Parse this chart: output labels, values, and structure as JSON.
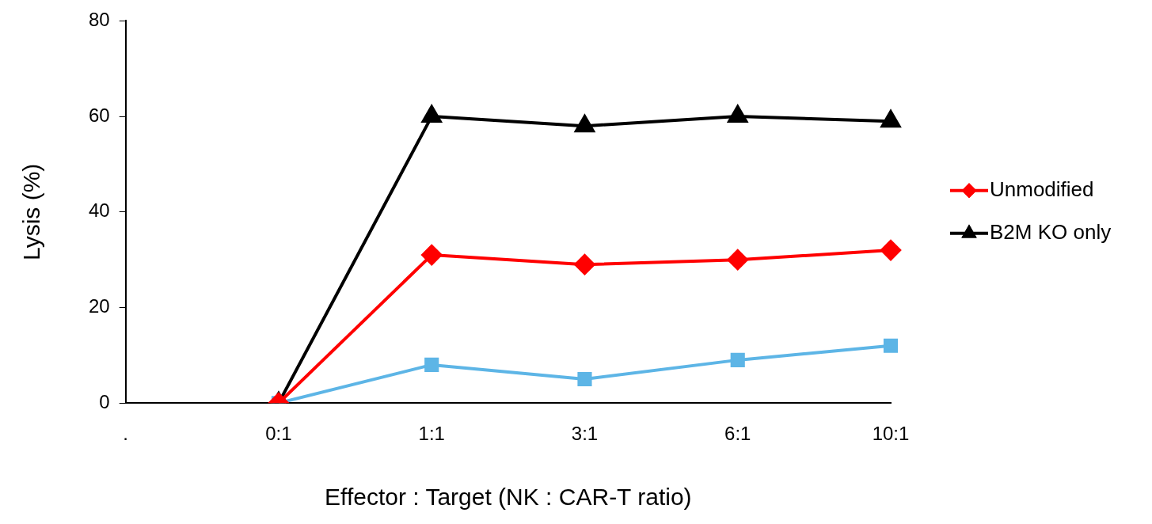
{
  "chart_data": {
    "type": "line",
    "xlabel": "Effector : Target (NK : CAR-T ratio)",
    "ylabel": "Lysis (%)",
    "categories": [
      ".",
      "0:1",
      "1:1",
      "3:1",
      "6:1",
      "10:1"
    ],
    "series": [
      {
        "name": "Unmodified",
        "color": "#ff0000",
        "marker": "diamond",
        "values": [
          null,
          0,
          31,
          29,
          30,
          32
        ]
      },
      {
        "name": "B2M KO only",
        "color": "#000000",
        "marker": "triangle",
        "values": [
          null,
          0,
          60,
          58,
          60,
          59
        ]
      },
      {
        "color": "#5db5e6",
        "marker": "square",
        "values": [
          null,
          0,
          8,
          5,
          9,
          12
        ]
      }
    ],
    "ylim": [
      0,
      80
    ],
    "yticks": [
      0,
      20,
      40,
      60,
      80
    ],
    "grid": false,
    "legend": "right",
    "line_style": "solid"
  }
}
